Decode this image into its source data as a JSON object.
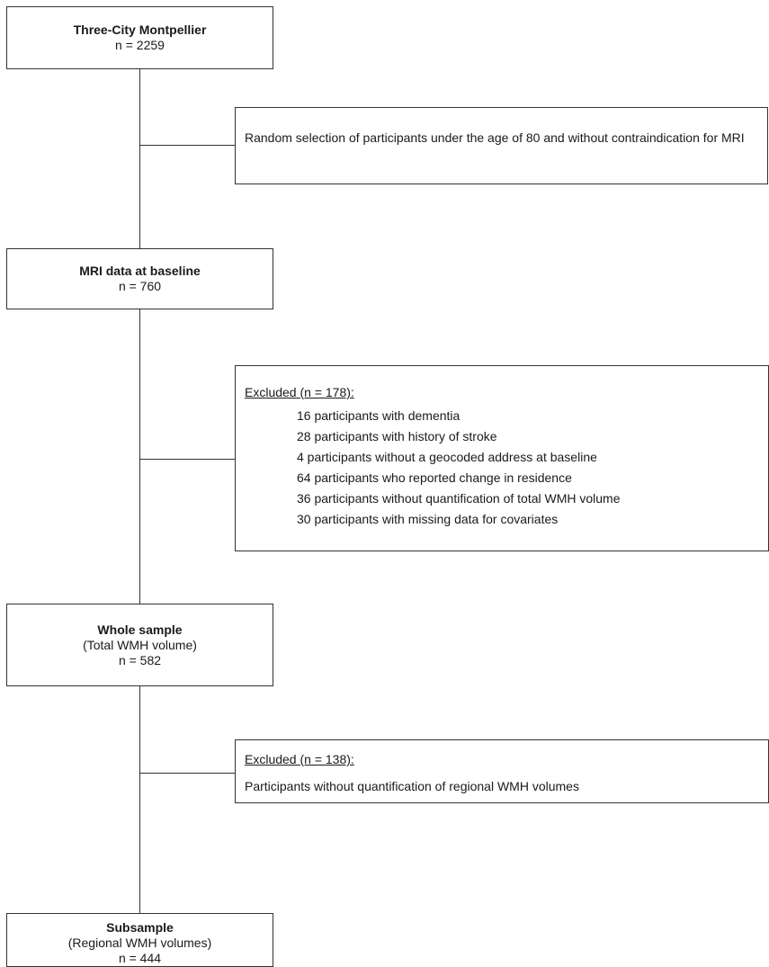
{
  "boxes": {
    "three_city": {
      "title": "Three-City Montpellier",
      "count": "n = 2259"
    },
    "random_selection": {
      "text": "Random selection of participants under the age of 80 and without contraindication for MRI"
    },
    "mri_baseline": {
      "title": "MRI data at baseline",
      "count": "n = 760"
    },
    "excluded_1": {
      "heading": "Excluded (n = 178):",
      "items": [
        "16 participants with dementia",
        "28 participants with history of stroke",
        "4 participants without a geocoded address at baseline",
        "64 participants who reported change in residence",
        "36 participants without quantification of total WMH volume",
        "30 participants with missing data for covariates"
      ]
    },
    "whole_sample": {
      "title": "Whole sample",
      "subtitle": "(Total WMH volume)",
      "count": "n = 582"
    },
    "excluded_2": {
      "heading": "Excluded (n = 138):",
      "text": "Participants without quantification of regional WMH volumes"
    },
    "subsample": {
      "title": "Subsample",
      "subtitle": "(Regional WMH volumes)",
      "count": "n = 444"
    }
  }
}
